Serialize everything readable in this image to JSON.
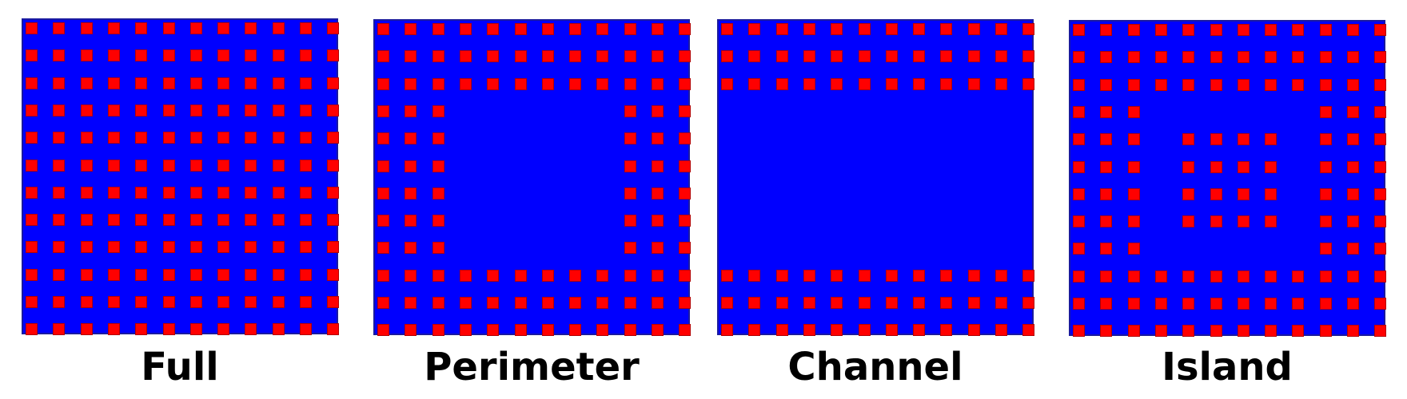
{
  "diagram": {
    "grid": {
      "rows": 12,
      "cols": 12
    },
    "colors": {
      "substrate": "#0000ff",
      "ball": "#ff0000"
    },
    "panels": [
      {
        "id": "full",
        "label": "Full",
        "pattern": "full"
      },
      {
        "id": "perimeter",
        "label": "Perimeter",
        "pattern": "perimeter",
        "ring_depth": 3
      },
      {
        "id": "channel",
        "label": "Channel",
        "pattern": "channel",
        "band_rows": 3
      },
      {
        "id": "island",
        "label": "Island",
        "pattern": "island",
        "ring_depth": 3,
        "island_rows": [
          4,
          7
        ],
        "island_cols": [
          4,
          7
        ]
      }
    ]
  }
}
